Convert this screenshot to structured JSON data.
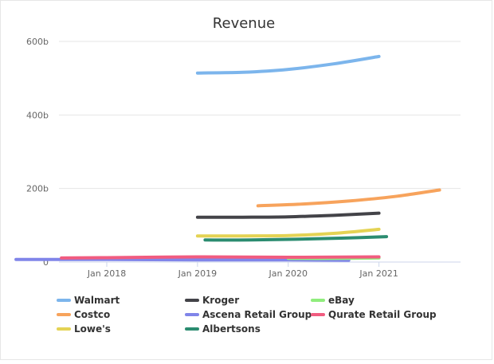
{
  "chart_data": {
    "type": "line",
    "title": "Revenue",
    "xlabel": "",
    "ylabel": "",
    "x_ticks": [
      "Jan 2018",
      "Jan 2019",
      "Jan 2020",
      "Jan 2021"
    ],
    "y_ticks": [
      "0",
      "200b",
      "400b",
      "600b"
    ],
    "ylim": [
      0,
      600
    ],
    "y_unit": "billions USD",
    "grid": "horizontal",
    "legend_position": "bottom",
    "series": [
      {
        "name": "Walmart",
        "color": "#7cb5ec",
        "points": [
          [
            "2019-01",
            514
          ],
          [
            "2019-07",
            516
          ],
          [
            "2020-01",
            524
          ],
          [
            "2020-07",
            539
          ],
          [
            "2021-01",
            559
          ]
        ]
      },
      {
        "name": "Costco",
        "color": "#f7a35c",
        "points": [
          [
            "2019-09",
            153
          ],
          [
            "2020-03",
            158
          ],
          [
            "2020-09",
            166
          ],
          [
            "2021-03",
            178
          ],
          [
            "2021-09",
            196
          ]
        ]
      },
      {
        "name": "Lowe's",
        "color": "#e4d354",
        "points": [
          [
            "2019-01",
            71
          ],
          [
            "2019-07",
            71
          ],
          [
            "2020-01",
            72
          ],
          [
            "2020-07",
            78
          ],
          [
            "2021-01",
            89
          ]
        ]
      },
      {
        "name": "Kroger",
        "color": "#434348",
        "points": [
          [
            "2019-01",
            122
          ],
          [
            "2019-07",
            122
          ],
          [
            "2020-01",
            123
          ],
          [
            "2020-07",
            127
          ],
          [
            "2021-01",
            133
          ]
        ]
      },
      {
        "name": "Ascena Retail Group",
        "color": "#8085e9",
        "points": [
          [
            "2017-01",
            7
          ],
          [
            "2018-01",
            7
          ],
          [
            "2019-01",
            6
          ],
          [
            "2020-01",
            6
          ],
          [
            "2020-09",
            5
          ]
        ]
      },
      {
        "name": "Albertsons",
        "color": "#2b8c70",
        "points": [
          [
            "2019-02",
            60
          ],
          [
            "2019-08",
            60
          ],
          [
            "2020-02",
            62
          ],
          [
            "2020-08",
            65
          ],
          [
            "2021-02",
            69
          ]
        ]
      },
      {
        "name": "eBay",
        "color": "#90ed7d",
        "points": [
          [
            "2020-01",
            10
          ],
          [
            "2020-07",
            10
          ],
          [
            "2021-01",
            11
          ]
        ]
      },
      {
        "name": "Qurate Retail Group",
        "color": "#f15c80",
        "points": [
          [
            "2017-07",
            11
          ],
          [
            "2018-01",
            12
          ],
          [
            "2019-01",
            14
          ],
          [
            "2020-01",
            13
          ],
          [
            "2021-01",
            14
          ]
        ]
      }
    ]
  }
}
